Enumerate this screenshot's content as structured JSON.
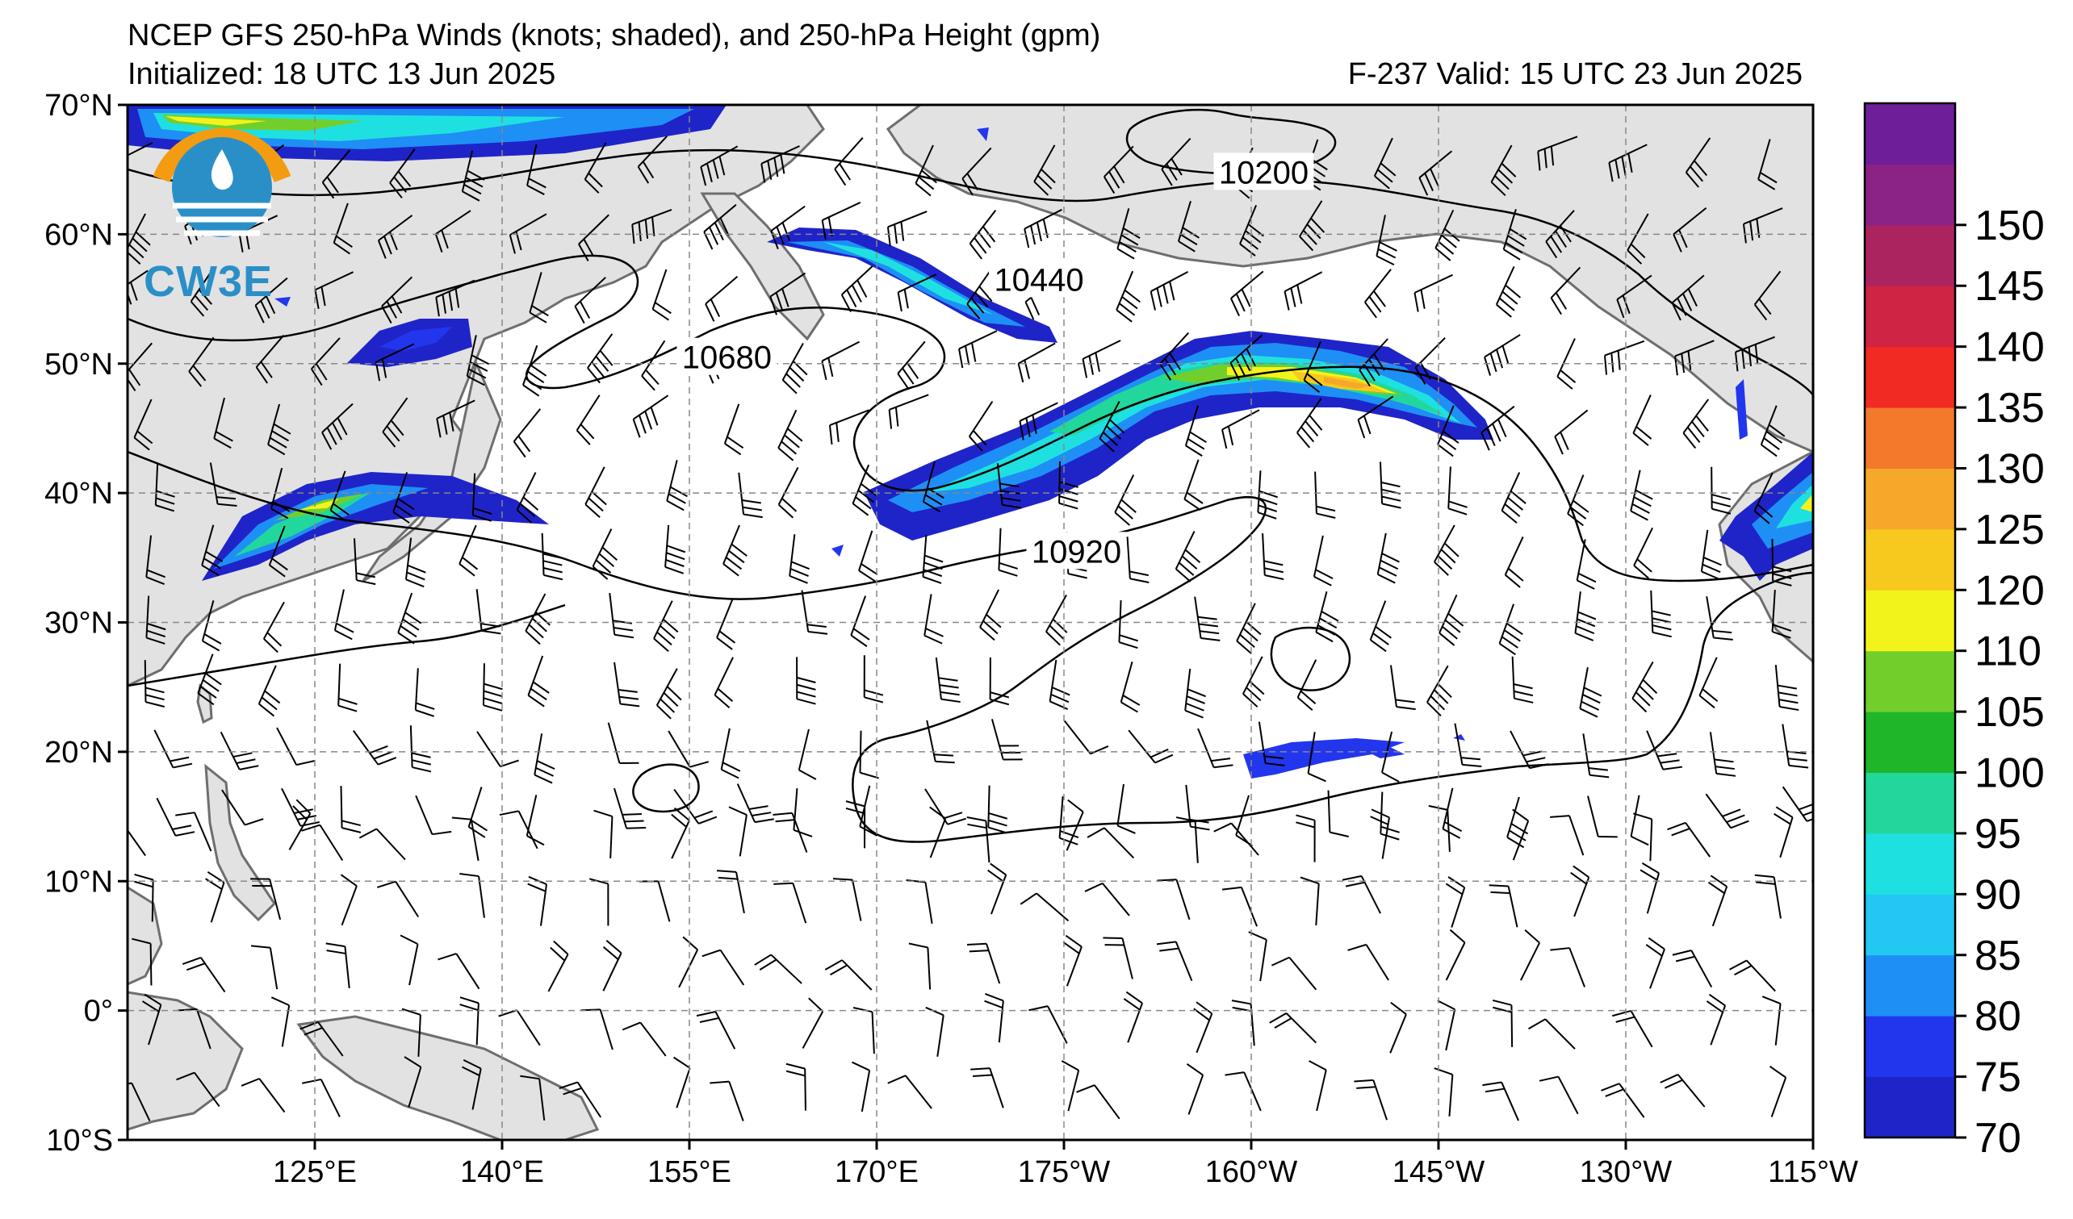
{
  "title": {
    "line1": "NCEP GFS 250-hPa Winds (knots; shaded), and 250-hPa Height (gpm)",
    "initialized": "Initialized: 18 UTC 13 Jun 2025",
    "valid": "F-237  Valid: 15 UTC 23 Jun 2025"
  },
  "logo": {
    "text": "CW3E",
    "colors": [
      "#f39c12",
      "#2b8fc7"
    ]
  },
  "map": {
    "lat_ticks": [
      "70°N",
      "60°N",
      "50°N",
      "40°N",
      "30°N",
      "20°N",
      "10°N",
      "0°",
      "10°S"
    ],
    "lon_ticks": [
      "125°E",
      "140°E",
      "155°E",
      "170°E",
      "175°W",
      "160°W",
      "145°W",
      "130°W",
      "115°W"
    ],
    "lat_range": [
      -10,
      70
    ],
    "lon_range": [
      110,
      245
    ],
    "contour_labels": [
      {
        "text": "10200",
        "lon": 201,
        "lat": 64.8
      },
      {
        "text": "10440",
        "lon": 183,
        "lat": 56.5
      },
      {
        "text": "10680",
        "lon": 158,
        "lat": 50.5
      },
      {
        "text": "10920",
        "lon": 186,
        "lat": 35.5
      }
    ]
  },
  "colorbar": {
    "ticks": [
      "70",
      "75",
      "80",
      "85",
      "90",
      "95",
      "100",
      "105",
      "110",
      "120",
      "125",
      "130",
      "135",
      "140",
      "145",
      "150"
    ],
    "colors": [
      "#1f24c8",
      "#2236ee",
      "#1e8ff5",
      "#22c8f2",
      "#1fe0e0",
      "#22d79c",
      "#1fb62a",
      "#72cf2b",
      "#f3f31c",
      "#f7c81e",
      "#f6a82b",
      "#f3792b",
      "#f12a24",
      "#cf2443",
      "#ab2460",
      "#8a2383",
      "#6f1e9a"
    ]
  },
  "colors": {
    "land": "#e2e2e2",
    "coast": "#6e6e6e",
    "grid": "#888888",
    "contour": "#000000"
  }
}
